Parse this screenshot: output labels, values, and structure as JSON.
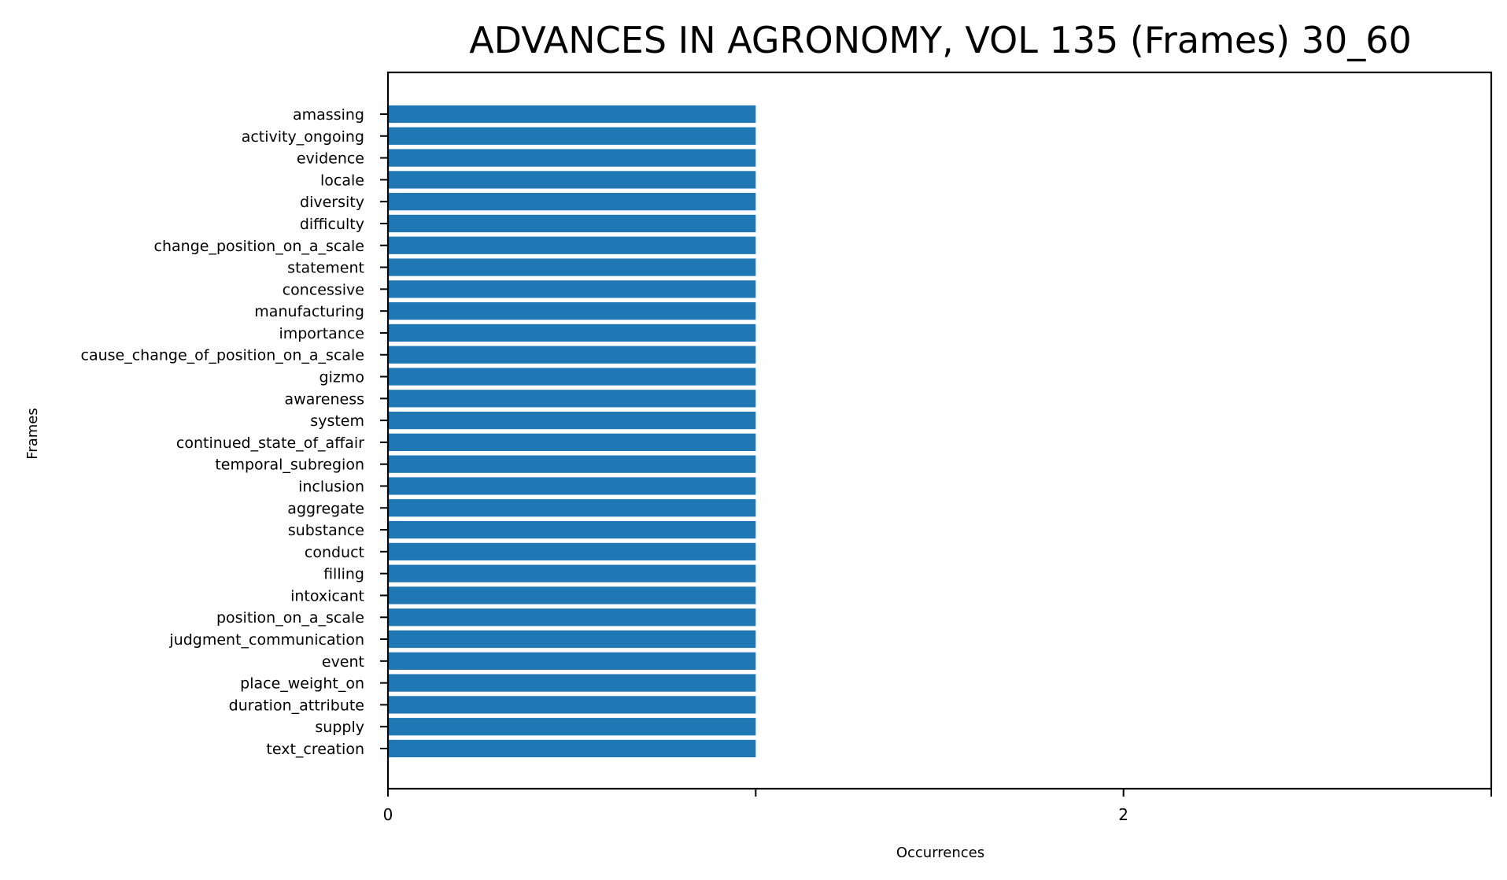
{
  "chart_data": {
    "type": "bar",
    "orientation": "horizontal",
    "title": "ADVANCES IN AGRONOMY, VOL 135 (Frames) 30_60",
    "xlabel": "Occurrences",
    "ylabel": "Frames",
    "xlim": [
      0,
      3
    ],
    "xticks": [
      0,
      1,
      2,
      3
    ],
    "xtick_labels": [
      "0",
      "",
      "2",
      ""
    ],
    "grid": false,
    "legend": "none",
    "bar_color": "#1f77b4",
    "categories": [
      "amassing",
      "activity_ongoing",
      "evidence",
      "locale",
      "diversity",
      "difficulty",
      "change_position_on_a_scale",
      "statement",
      "concessive",
      "manufacturing",
      "importance",
      "cause_change_of_position_on_a_scale",
      "gizmo",
      "awareness",
      "system",
      "continued_state_of_affair",
      "temporal_subregion",
      "inclusion",
      "aggregate",
      "substance",
      "conduct",
      "filling",
      "intoxicant",
      "position_on_a_scale",
      "judgment_communication",
      "event",
      "place_weight_on",
      "duration_attribute",
      "supply",
      "text_creation"
    ],
    "values": [
      1,
      1,
      1,
      1,
      1,
      1,
      1,
      1,
      1,
      1,
      1,
      1,
      1,
      1,
      1,
      1,
      1,
      1,
      1,
      1,
      1,
      1,
      1,
      1,
      1,
      1,
      1,
      1,
      1,
      1
    ]
  }
}
